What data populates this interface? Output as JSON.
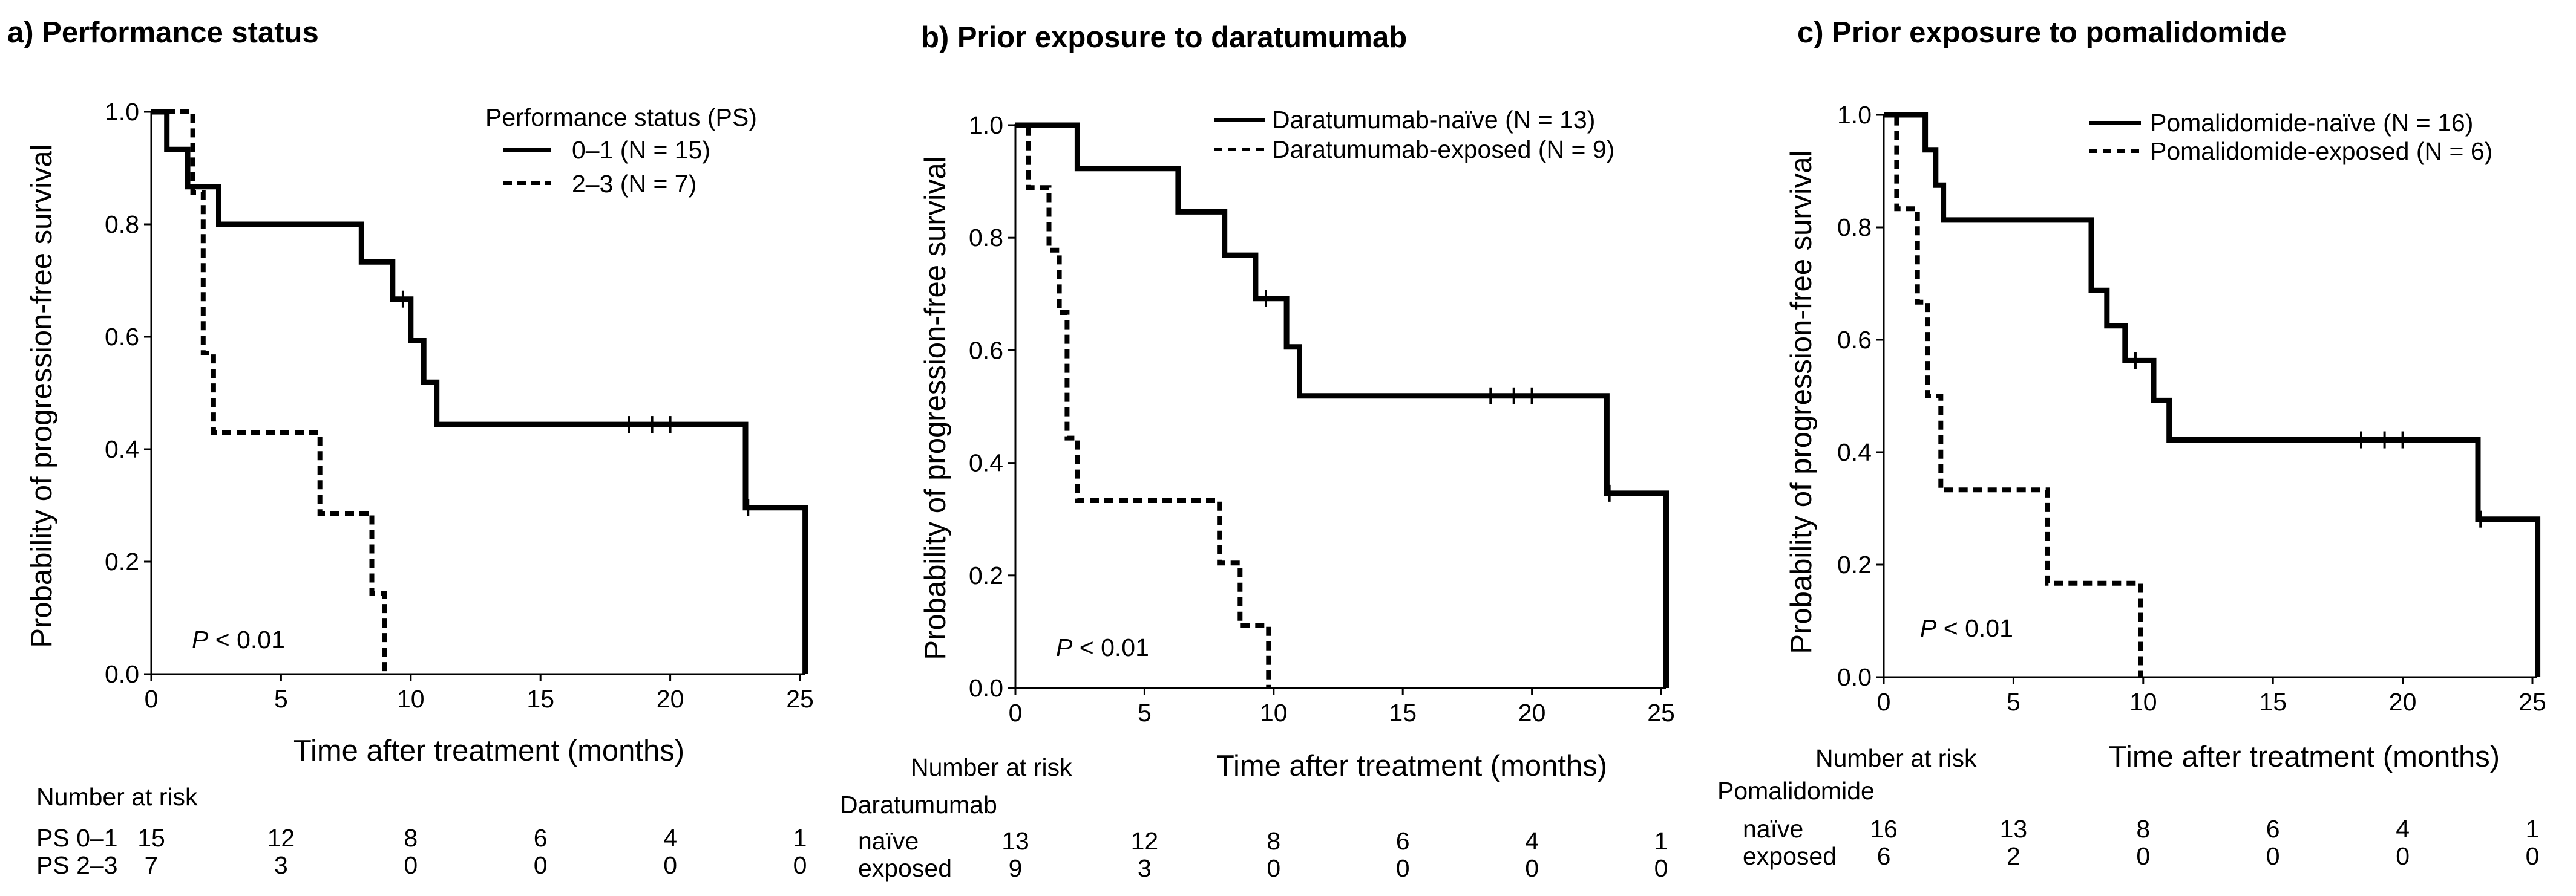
{
  "chart_data": [
    {
      "type": "line",
      "subtype": "kaplan-meier",
      "title": "a) Performance status",
      "xlabel": "Time after treatment (months)",
      "ylabel": "Probability of progression-free survival",
      "xlim": [
        0,
        25
      ],
      "ylim": [
        0,
        1
      ],
      "x_ticks": [
        "0",
        "5",
        "10",
        "15",
        "20",
        "25"
      ],
      "y_ticks": [
        "0.0",
        "0.2",
        "0.4",
        "0.6",
        "0.8",
        "1.0"
      ],
      "legend_title": "Performance status (PS)",
      "p_label": "P",
      "p_rest": " < 0.01",
      "series": [
        {
          "name": "0–1 (N = 15)",
          "style": "solid",
          "x": [
            0,
            0.6,
            0.6,
            1.4,
            1.4,
            2.6,
            2.6,
            8.1,
            8.1,
            9.3,
            9.3,
            10.0,
            10.0,
            10.5,
            10.5,
            11.0,
            11.0,
            22.9,
            22.9,
            25.2,
            25.2
          ],
          "y": [
            1.0,
            1.0,
            0.933,
            0.933,
            0.867,
            0.867,
            0.8,
            0.8,
            0.733,
            0.733,
            0.667,
            0.667,
            0.593,
            0.593,
            0.519,
            0.519,
            0.444,
            0.444,
            0.296,
            0.296,
            0.0
          ],
          "censor_x": [
            9.7,
            18.4,
            19.3,
            20.0,
            23.0
          ],
          "censor_y": [
            0.667,
            0.444,
            0.444,
            0.444,
            0.296
          ]
        },
        {
          "name": "2–3 (N = 7)",
          "style": "dashed",
          "x": [
            0,
            1.6,
            1.6,
            2.0,
            2.0,
            2.4,
            2.4,
            6.5,
            6.5,
            8.5,
            8.5,
            9.0,
            9.0
          ],
          "y": [
            1.0,
            1.0,
            0.857,
            0.857,
            0.571,
            0.571,
            0.429,
            0.429,
            0.286,
            0.286,
            0.143,
            0.143,
            0.0
          ],
          "censor_x": [],
          "censor_y": []
        }
      ],
      "risk_header": "Number at risk",
      "risk_group_label": "",
      "risk_rows": [
        {
          "label": "PS 0–1",
          "values": [
            "15",
            "12",
            "8",
            "6",
            "4",
            "1"
          ]
        },
        {
          "label": "PS 2–3",
          "values": [
            "7",
            "3",
            "0",
            "0",
            "0",
            "0"
          ]
        }
      ]
    },
    {
      "type": "line",
      "subtype": "kaplan-meier",
      "title": "b) Prior exposure to daratumumab",
      "xlabel": "Time after treatment (months)",
      "ylabel": "Probability of progression-free survival",
      "xlim": [
        0,
        25
      ],
      "ylim": [
        0,
        1
      ],
      "x_ticks": [
        "0",
        "5",
        "10",
        "15",
        "20",
        "25"
      ],
      "y_ticks": [
        "0.0",
        "0.2",
        "0.4",
        "0.6",
        "0.8",
        "1.0"
      ],
      "legend_title": "",
      "p_label": "P",
      "p_rest": " < 0.01",
      "series": [
        {
          "name": "Daratumumab-naïve (N = 13)",
          "style": "solid",
          "x": [
            0,
            2.4,
            2.4,
            6.3,
            6.3,
            8.1,
            8.1,
            9.3,
            9.3,
            10.5,
            10.5,
            11.0,
            11.0,
            22.9,
            22.9,
            25.2,
            25.2
          ],
          "y": [
            1.0,
            1.0,
            0.923,
            0.923,
            0.846,
            0.846,
            0.769,
            0.769,
            0.692,
            0.692,
            0.606,
            0.606,
            0.519,
            0.519,
            0.346,
            0.346,
            0.0
          ],
          "censor_x": [
            9.7,
            18.4,
            19.3,
            20.0,
            23.0
          ],
          "censor_y": [
            0.692,
            0.519,
            0.519,
            0.519,
            0.346
          ]
        },
        {
          "name": "Daratumumab-exposed (N = 9)",
          "style": "dashed",
          "x": [
            0,
            0.5,
            0.5,
            1.3,
            1.3,
            1.7,
            1.7,
            2.0,
            2.0,
            2.4,
            2.4,
            2.7,
            2.7,
            7.9,
            7.9,
            8.7,
            8.7,
            9.3,
            9.3,
            9.8,
            9.8
          ],
          "y": [
            1.0,
            1.0,
            0.889,
            0.889,
            0.778,
            0.778,
            0.667,
            0.667,
            0.444,
            0.444,
            0.333,
            0.333,
            0.333,
            0.333,
            0.222,
            0.222,
            0.111,
            0.111,
            0.111,
            0.111,
            0.0
          ],
          "censor_x": [],
          "censor_y": []
        }
      ],
      "risk_header": "Number at risk",
      "risk_group_label": "Daratumumab",
      "risk_rows": [
        {
          "label": "naïve",
          "values": [
            "13",
            "12",
            "8",
            "6",
            "4",
            "1"
          ]
        },
        {
          "label": "exposed",
          "values": [
            "9",
            "3",
            "0",
            "0",
            "0",
            "0"
          ]
        }
      ]
    },
    {
      "type": "line",
      "subtype": "kaplan-meier",
      "title": "c) Prior exposure to pomalidomide",
      "xlabel": "Time after treatment (months)",
      "ylabel": "Probability of progression-free survival",
      "xlim": [
        0,
        25
      ],
      "ylim": [
        0,
        1
      ],
      "x_ticks": [
        "0",
        "5",
        "10",
        "15",
        "20",
        "25"
      ],
      "y_ticks": [
        "0.0",
        "0.2",
        "0.4",
        "0.6",
        "0.8",
        "1.0"
      ],
      "legend_title": "",
      "p_label": "P",
      "p_rest": " < 0.01",
      "series": [
        {
          "name": "Pomalidomide-naïve (N = 16)",
          "style": "solid",
          "x": [
            0,
            1.6,
            1.6,
            2.0,
            2.0,
            2.3,
            2.3,
            8.0,
            8.0,
            8.6,
            8.6,
            9.3,
            9.3,
            10.4,
            10.4,
            11.0,
            11.0,
            22.9,
            22.9,
            25.2,
            25.2
          ],
          "y": [
            1.0,
            1.0,
            0.938,
            0.938,
            0.875,
            0.875,
            0.813,
            0.813,
            0.688,
            0.688,
            0.625,
            0.625,
            0.563,
            0.563,
            0.492,
            0.492,
            0.422,
            0.422,
            0.281,
            0.281,
            0.0
          ],
          "censor_x": [
            9.7,
            18.4,
            19.3,
            20.0,
            23.0
          ],
          "censor_y": [
            0.563,
            0.422,
            0.422,
            0.422,
            0.281
          ]
        },
        {
          "name": "Pomalidomide-exposed (N = 6)",
          "style": "dashed",
          "x": [
            0,
            0.5,
            0.5,
            1.3,
            1.3,
            1.7,
            1.7,
            2.2,
            2.2,
            6.3,
            6.3,
            9.9,
            9.9
          ],
          "y": [
            1.0,
            1.0,
            0.833,
            0.833,
            0.667,
            0.667,
            0.5,
            0.5,
            0.333,
            0.333,
            0.167,
            0.167,
            0.0
          ],
          "censor_x": [],
          "censor_y": []
        }
      ],
      "risk_header": "Number at risk",
      "risk_group_label": "Pomalidomide",
      "risk_rows": [
        {
          "label": "naïve",
          "values": [
            "16",
            "13",
            "8",
            "6",
            "4",
            "1"
          ]
        },
        {
          "label": "exposed",
          "values": [
            "6",
            "2",
            "0",
            "0",
            "0",
            "0"
          ]
        }
      ]
    }
  ]
}
